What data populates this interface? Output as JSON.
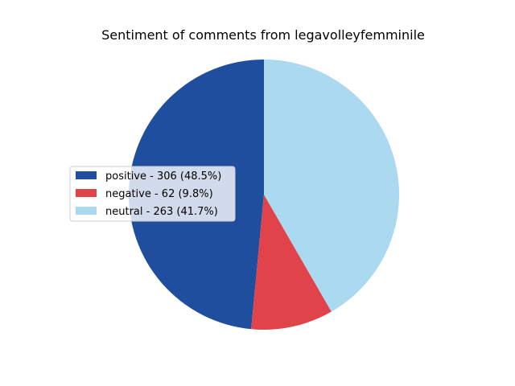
{
  "chart_data": {
    "type": "pie",
    "title": "Sentiment of comments from legavolleyfemminile",
    "slices": [
      {
        "label": "positive",
        "value": 306,
        "percent": 48.5,
        "color": "#1f4e9e",
        "legend": "positive - 306 (48.5%)"
      },
      {
        "label": "negative",
        "value": 62,
        "percent": 9.8,
        "color": "#e0444a",
        "legend": "negative - 62 (9.8%)"
      },
      {
        "label": "neutral",
        "value": 263,
        "percent": 41.7,
        "color": "#abd9f0",
        "legend": "neutral - 263 (41.7%)"
      }
    ],
    "start_angle_deg": 90,
    "direction": "counterclockwise",
    "legend_position": "center-left"
  }
}
